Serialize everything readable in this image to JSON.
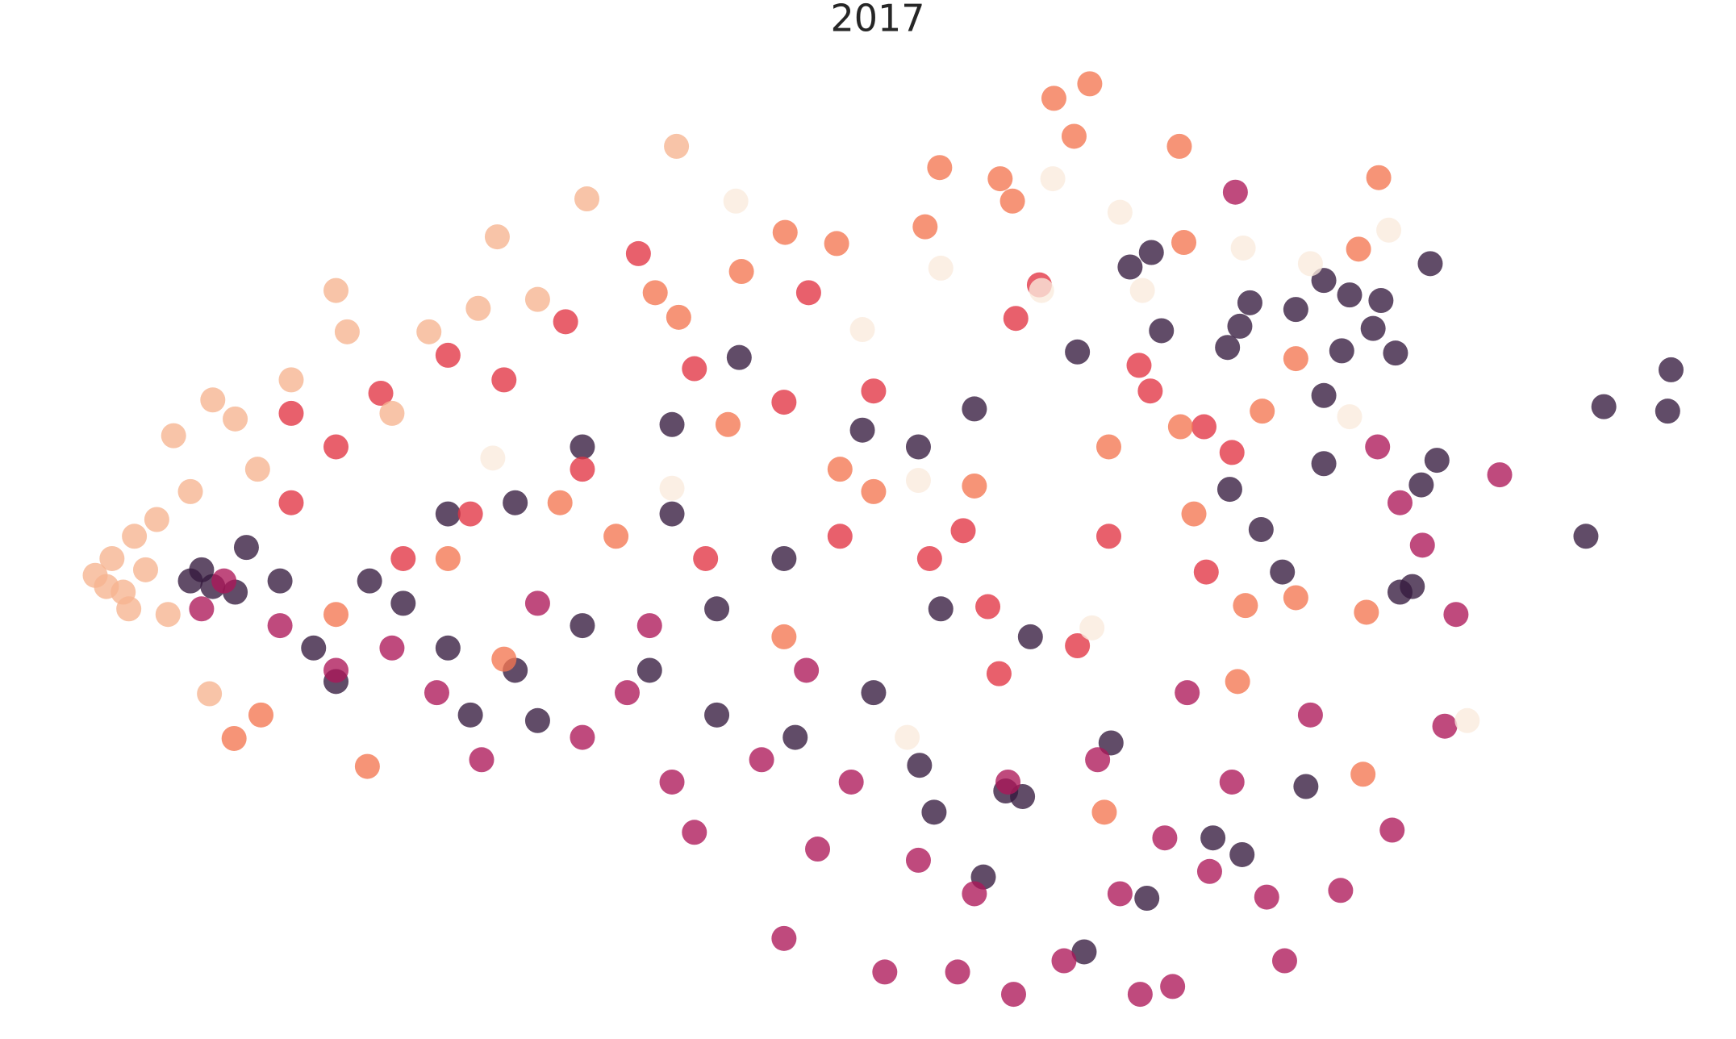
{
  "chart_data": {
    "type": "scatter",
    "title": "2017",
    "xlim": [
      0,
      1550
    ],
    "ylim": [
      0,
      930
    ],
    "series": [
      {
        "color": "#35193e",
        "x": [
          1028,
          1009,
          1182,
          1205,
          1233,
          1277,
          1116,
          1157,
          1107,
          1037,
          1096,
          1198,
          1226,
          1246,
          1182,
          1432,
          1492,
          1489,
          1416,
          1283,
          1269,
          1261,
          1250,
          1145,
          1182,
          1126,
          1098,
          962,
          870,
          1083,
          1109,
          1166,
          1024,
          968,
          878,
          821,
          834,
          898,
          913,
          992,
          920,
          840,
          780,
          710,
          640,
          580,
          520,
          460,
          400,
          330,
          280,
          250,
          220,
          180,
          190,
          210,
          170,
          640,
          600,
          700,
          820,
          770,
          660,
          600,
          520,
          460,
          400,
          360,
          300,
          480,
          420
        ],
        "y": [
          704,
          691,
          679,
          666,
          661,
          694,
          659,
          653,
          638,
          634,
          619,
          616,
          636,
          614,
          576,
          566,
          599,
          562,
          450,
          518,
          496,
          405,
          400,
          418,
          515,
          456,
          492,
          615,
          564,
          180,
          165,
          226,
          126,
          78,
          145,
          245,
          203,
          222,
          217,
          265,
          360,
          385,
          310,
          270,
          290,
          330,
          370,
          330,
          350,
          410,
          350,
          410,
          440,
          420,
          405,
          400,
          410,
          385,
          470,
          430,
          530,
          545,
          610,
          550,
          530,
          480,
          470,
          390,
          320,
          285,
          290
        ]
      },
      {
        "color": "#ad1759",
        "x": [
          1103,
          620,
          700,
          790,
          855,
          905,
          1047,
          1147,
          1018,
          1131,
          1197,
          1243,
          1339,
          1230,
          1290,
          980,
          1060,
          900,
          820,
          760,
          680,
          600,
          520,
          430,
          390,
          300,
          250,
          560,
          1000,
          950,
          870,
          730,
          1170,
          1300,
          1250,
          1270,
          1040,
          1100,
          1080,
          200,
          180,
          350,
          480,
          580,
          720
        ],
        "y": [
          758,
          185,
          90,
          60,
          60,
          40,
          47,
          70,
          40,
          127,
          133,
          187,
          505,
          530,
          280,
          250,
          310,
          230,
          160,
          230,
          250,
          230,
          270,
          250,
          310,
          330,
          370,
          310,
          130,
          70,
          130,
          170,
          290,
          380,
          480,
          442,
          180,
          230,
          150,
          410,
          385,
          350,
          390,
          370,
          330
        ]
      },
      {
        "color": "#e13342",
        "x": [
          570,
          722,
          928,
          907,
          1017,
          1027,
          1075,
          1100,
          1077,
          962,
          892,
          882,
          860,
          400,
          505,
          340,
          450,
          300,
          260,
          620,
          700,
          780,
          520,
          420,
          360,
          630,
          750,
          830,
          990,
          260
        ],
        "y": [
          703,
          668,
          675,
          645,
          603,
          580,
          548,
          525,
          418,
          352,
          327,
          387,
          455,
          612,
          642,
          578,
          590,
          530,
          480,
          600,
          570,
          580,
          510,
          470,
          430,
          430,
          450,
          430,
          450,
          560
        ]
      },
      {
        "color": "#f37651",
        "x": [
          941,
          973,
          959,
          1053,
          1231,
          839,
          893,
          904,
          701,
          747,
          662,
          826,
          585,
          606,
          1057,
          1213,
          1157,
          1127,
          1054,
          1066,
          1112,
          1157,
          1220,
          1217,
          986,
          1105,
          328,
          209,
          233,
          400,
          500,
          650,
          750,
          870,
          990,
          300,
          450,
          700,
          550,
          780
        ],
        "y": [
          842,
          855,
          808,
          799,
          771,
          780,
          770,
          750,
          722,
          712,
          687,
          727,
          668,
          646,
          713,
          707,
          609,
          562,
          548,
          470,
          388,
          395,
          382,
          237,
          203,
          320,
          244,
          269,
          290,
          430,
          480,
          550,
          510,
          495,
          530,
          380,
          340,
          360,
          450,
          490
        ]
      },
      {
        "color": "#faebdd",
        "x": [
          657,
          940,
          1000,
          1110,
          1240,
          770,
          840,
          1020,
          1205,
          1310,
          975,
          810,
          820,
          440,
          600,
          1170,
          930
        ],
        "y": [
          750,
          770,
          740,
          708,
          724,
          635,
          690,
          670,
          557,
          285,
          368,
          270,
          500,
          520,
          493,
          694,
          670
        ]
      },
      {
        "color": "#f6b48f",
        "x": [
          85,
          100,
          110,
          120,
          130,
          95,
          140,
          155,
          190,
          210,
          260,
          300,
          310,
          383,
          427,
          444,
          524,
          604,
          187,
          480,
          170,
          150,
          230,
          350,
          115
        ],
        "y": [
          415,
          430,
          400,
          450,
          420,
          405,
          465,
          540,
          572,
          555,
          590,
          670,
          633,
          633,
          654,
          718,
          752,
          799,
          309,
          662,
          490,
          380,
          510,
          560,
          385
        ]
      }
    ]
  }
}
